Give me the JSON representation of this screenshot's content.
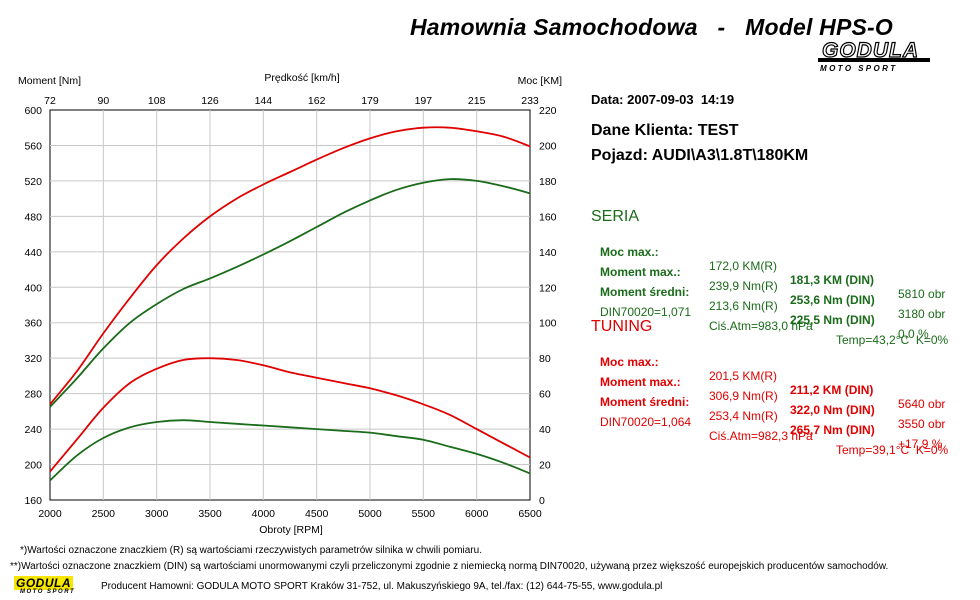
{
  "header": {
    "title": "Hamownia Samochodowa   -   Model HPS-O",
    "logo_main": "GODULA",
    "logo_sub": "MOTO SPORT"
  },
  "info": {
    "date": "Data: 2007-09-03  14:19",
    "client": "Dane Klienta: TEST",
    "vehicle": "Pojazd: AUDI\\A3\\1.8T\\180KM"
  },
  "seria": {
    "title": "SERIA",
    "color": "#1a6b1a",
    "rows": [
      {
        "label": "Moc max.:",
        "r": "172,0 KM(R)",
        "din": "181,3 KM (DIN)",
        "extra": "5810 obr"
      },
      {
        "label": "Moment max.:",
        "r": "239,9 Nm(R)",
        "din": "253,6 Nm (DIN)",
        "extra": "3180 obr"
      },
      {
        "label": "Moment średni:",
        "r": "213,6 Nm(R)",
        "din": "225,5 Nm (DIN)",
        "extra": "0,0 %"
      }
    ],
    "din_line": {
      "din": "DIN70020=1,071",
      "atm": "Ciś.Atm=983,0 hPa",
      "temp": "Temp=43,2°C  K=0%"
    }
  },
  "tuning": {
    "title": "TUNING",
    "color": "#e00000",
    "rows": [
      {
        "label": "Moc max.:",
        "r": "201,5 KM(R)",
        "din": "211,2 KM (DIN)",
        "extra": "5640 obr"
      },
      {
        "label": "Moment max.:",
        "r": "306,9 Nm(R)",
        "din": "322,0 Nm (DIN)",
        "extra": "3550 obr"
      },
      {
        "label": "Moment średni:",
        "r": "253,4 Nm(R)",
        "din": "265,7 Nm (DIN)",
        "extra": "+17,9 %"
      }
    ],
    "din_line": {
      "din": "DIN70020=1,064",
      "atm": "Ciś.Atm=982,3 hPa",
      "temp": "Temp=39,1°C  K=0%"
    }
  },
  "footer": {
    "note1": "*)Wartości oznaczone znaczkiem (R) są wartościami rzeczywistych parametrów silnika w chwili pomiaru.",
    "note2": "**)Wartości oznaczone znaczkiem (DIN) są wartościami unormowanymi czyli przeliczonymi zgodnie z niemiecką normą DIN70020, używaną przez większość europejskich producentów samochodów.",
    "producer": "Producent Hamowni: GODULA MOTO SPORT Kraków 31-752, ul. Makuszyńskiego 9A, tel./fax: (12) 644-75-55, www.godula.pl",
    "logo_main": "GODULA",
    "logo_sub": "MOTO SPORT"
  },
  "chart_data": {
    "type": "line",
    "xlabel": "Obroty [RPM]",
    "ylabel_left": "Moment [Nm]",
    "ylabel_right": "Moc [KM]",
    "top_axis_label": "Prędkość [km/h]",
    "xlim": [
      2000,
      6500
    ],
    "ylim_left": [
      160,
      600
    ],
    "ylim_right": [
      0,
      220
    ],
    "x_ticks": [
      "2000",
      "2500",
      "3000",
      "3500",
      "4000",
      "4500",
      "5000",
      "5500",
      "6000",
      "6500"
    ],
    "y_left_ticks": [
      "160",
      "200",
      "240",
      "280",
      "320",
      "360",
      "400",
      "440",
      "480",
      "520",
      "560",
      "600"
    ],
    "y_right_ticks": [
      "0",
      "20",
      "40",
      "60",
      "80",
      "100",
      "120",
      "140",
      "160",
      "180",
      "200",
      "220"
    ],
    "top_ticks": [
      "72",
      "90",
      "108",
      "126",
      "144",
      "162",
      "179",
      "197",
      "215",
      "233"
    ],
    "grid": true,
    "series": [
      {
        "color": "#e00000",
        "axis": "left",
        "x": [
          2000,
          2250,
          2500,
          2750,
          3000,
          3250,
          3500,
          3750,
          4000,
          4250,
          4500,
          4750,
          5000,
          5250,
          5500,
          5750,
          6000,
          6250,
          6500
        ],
        "y": [
          268,
          305,
          348,
          388,
          425,
          455,
          480,
          500,
          516,
          530,
          544,
          557,
          568,
          576,
          580,
          580,
          576,
          570,
          559
        ]
      },
      {
        "color": "#1a6b1a",
        "axis": "left",
        "x": [
          2000,
          2250,
          2500,
          2750,
          3000,
          3250,
          3500,
          3750,
          4000,
          4250,
          4500,
          4750,
          5000,
          5250,
          5500,
          5750,
          6000,
          6250,
          6500
        ],
        "y": [
          265,
          297,
          331,
          360,
          381,
          398,
          410,
          423,
          437,
          452,
          468,
          484,
          498,
          510,
          518,
          522,
          520,
          514,
          506
        ]
      },
      {
        "color": "#e00000",
        "axis": "right",
        "x": [
          2000,
          2250,
          2500,
          2750,
          3000,
          3250,
          3500,
          3750,
          4000,
          4250,
          4500,
          4750,
          5000,
          5250,
          5500,
          5750,
          6000,
          6250,
          6500
        ],
        "y": [
          16,
          34,
          52,
          66,
          74,
          79,
          80,
          79,
          76,
          72,
          69,
          66,
          63,
          59,
          54,
          48,
          40,
          32,
          24
        ]
      },
      {
        "color": "#1a6b1a",
        "axis": "right",
        "x": [
          2000,
          2250,
          2500,
          2750,
          3000,
          3250,
          3500,
          3750,
          4000,
          4250,
          4500,
          4750,
          5000,
          5250,
          5500,
          5750,
          6000,
          6250,
          6500
        ],
        "y": [
          11,
          25,
          35,
          41,
          44,
          45,
          44,
          43,
          42,
          41,
          40,
          39,
          38,
          36,
          34,
          30,
          26,
          21,
          15
        ]
      }
    ]
  }
}
